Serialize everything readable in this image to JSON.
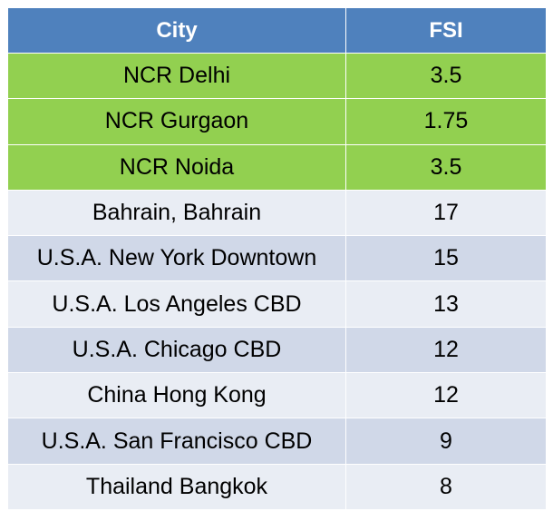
{
  "table": {
    "headers": {
      "city": "City",
      "fsi": "FSI"
    },
    "rows": [
      {
        "city": "NCR Delhi",
        "fsi": "3.5",
        "style": "green"
      },
      {
        "city": "NCR Gurgaon",
        "fsi": "1.75",
        "style": "green"
      },
      {
        "city": "NCR Noida",
        "fsi": "3.5",
        "style": "green"
      },
      {
        "city": "Bahrain, Bahrain",
        "fsi": "17",
        "style": "light"
      },
      {
        "city": "U.S.A. New York Downtown",
        "fsi": "15",
        "style": "dark"
      },
      {
        "city": "U.S.A. Los Angeles CBD",
        "fsi": "13",
        "style": "light"
      },
      {
        "city": "U.S.A. Chicago CBD",
        "fsi": "12",
        "style": "dark"
      },
      {
        "city": "China Hong Kong",
        "fsi": "12",
        "style": "light"
      },
      {
        "city": "U.S.A. San Francisco CBD",
        "fsi": "9",
        "style": "dark"
      },
      {
        "city": "Thailand Bangkok",
        "fsi": "8",
        "style": "light"
      }
    ]
  },
  "colors": {
    "header": "#4f81bd",
    "highlight_rows": "#92d050",
    "row_light": "#e9edf4",
    "row_dark": "#d0d8e8"
  }
}
